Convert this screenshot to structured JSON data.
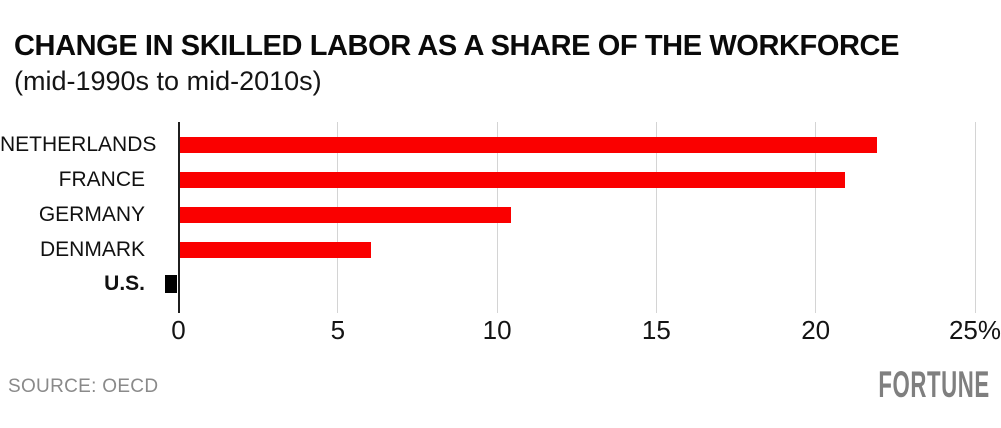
{
  "header": {
    "title": "CHANGE IN SKILLED LABOR AS A SHARE OF THE WORKFORCE",
    "subtitle": "(mid-1990s to mid-2010s)"
  },
  "footer": {
    "source": "SOURCE: OECD",
    "brand": "FORTUNE"
  },
  "colors": {
    "bar_red": "#fa0000",
    "bar_highlight_black": "#000000",
    "gridline": "#d4d4d4",
    "zero_axis": "#1f1f1f",
    "muted_gray": "#8a8a8a"
  },
  "chart_data": {
    "type": "bar",
    "orientation": "horizontal",
    "title": "CHANGE IN SKILLED LABOR AS A SHARE OF THE WORKFORCE",
    "subtitle": "(mid-1990s to mid-2010s)",
    "categories": [
      "NETHERLANDS",
      "FRANCE",
      "GERMANY",
      "DENMARK",
      "U.S."
    ],
    "values": [
      21.9,
      20.9,
      10.4,
      6.0,
      -0.4
    ],
    "unit": "%",
    "bar_colors": [
      "#fa0000",
      "#fa0000",
      "#fa0000",
      "#fa0000",
      "#000000"
    ],
    "highlight_category": "U.S.",
    "xlabel": "",
    "ylabel": "",
    "xlim": [
      0,
      25
    ],
    "x_ticks": [
      0,
      5,
      10,
      15,
      20,
      25
    ],
    "x_tick_labels": [
      "0",
      "5",
      "10",
      "15",
      "20",
      "25%"
    ],
    "grid": true,
    "legend": false,
    "source": "OECD"
  }
}
